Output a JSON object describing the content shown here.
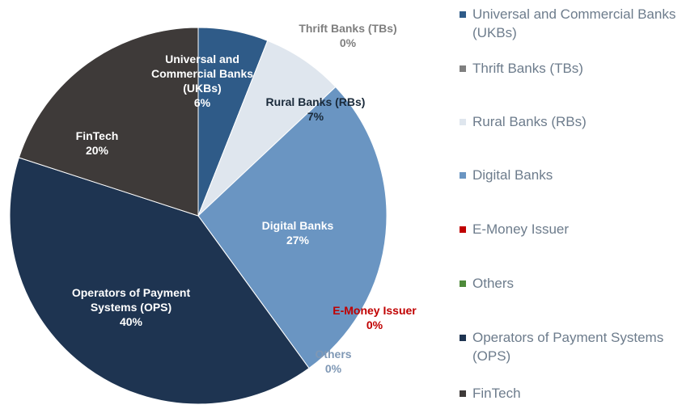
{
  "chart_data": {
    "type": "pie",
    "categories": [
      "Universal and Commercial Banks (UKBs)",
      "Thrift Banks (TBs)",
      "Rural Banks (RBs)",
      "Digital Banks",
      "E-Money Issuer",
      "Others",
      "Operators of Payment Systems (OPS)",
      "FinTech"
    ],
    "values": [
      6,
      0,
      7,
      27,
      0,
      0,
      40,
      20
    ],
    "value_labels": [
      "6%",
      "0%",
      "7%",
      "27%",
      "0%",
      "0%",
      "40%",
      "20%"
    ],
    "colors": [
      "#2f5b88",
      "#7f7f7f",
      "#dfe6ee",
      "#6a95c2",
      "#c00000",
      "#4e8a3a",
      "#1e3451",
      "#3e3a39"
    ],
    "legend": "right"
  }
}
